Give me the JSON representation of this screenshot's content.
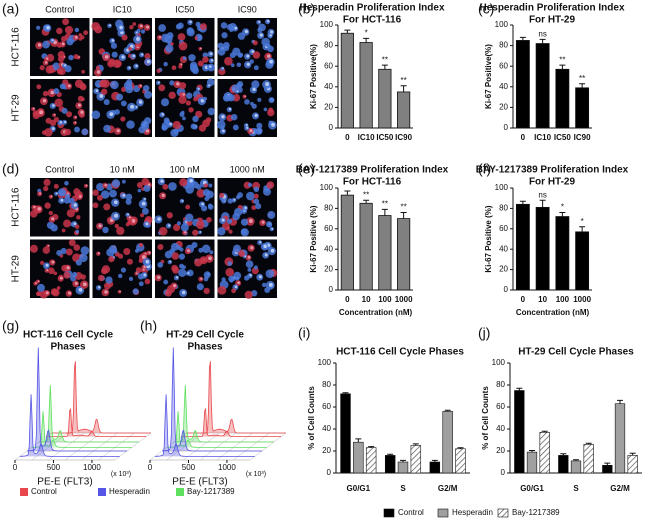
{
  "micrographs": [
    {
      "panel": "(a)",
      "columns": [
        "Control",
        "IC10",
        "IC50",
        "IC90"
      ],
      "rows": [
        "HCT-116",
        "HT-29"
      ]
    },
    {
      "panel": "(d)",
      "columns": [
        "Control",
        "10 nM",
        "100 nM",
        "1000 nM"
      ],
      "rows": [
        "HCT-116",
        "HT-29"
      ]
    }
  ],
  "flow_legend": [
    {
      "name": "Control",
      "color": "#e8474b"
    },
    {
      "name": "Hesperadin",
      "color": "#5555e6"
    },
    {
      "name": "Bay-1217389",
      "color": "#5fe05f"
    }
  ],
  "bar_legend": [
    {
      "name": "Control",
      "color": "#000000"
    },
    {
      "name": "Hesperadin",
      "color": "#a0a0a0"
    },
    {
      "name": "Bay-1217389",
      "color": "#ffffff",
      "hatch": true
    }
  ],
  "chart_data": [
    {
      "type": "bar",
      "panel": "(b)",
      "title": "Hesperadin Proliferation Index",
      "subtitle": "For HCT-116",
      "ylabel": "Ki-67 Positive(%)",
      "categories": [
        "0",
        "IC10",
        "IC50",
        "IC90"
      ],
      "values": [
        92,
        83,
        57,
        35
      ],
      "errors": [
        3,
        4,
        4,
        6
      ],
      "annotations": [
        null,
        "*",
        "**",
        "**"
      ],
      "color": "#808080",
      "ylim": [
        0,
        100
      ],
      "yticks": [
        0,
        20,
        40,
        60,
        80,
        100
      ]
    },
    {
      "type": "bar",
      "panel": "(c)",
      "title": "Hesperadin Proliferation Index",
      "subtitle": "For HT-29",
      "ylabel": "Ki-67 Positive(%)",
      "categories": [
        "0",
        "IC10",
        "IC50",
        "IC90"
      ],
      "values": [
        85,
        82,
        57,
        39
      ],
      "errors": [
        3,
        4,
        4,
        4
      ],
      "annotations": [
        null,
        "ns",
        "**",
        "**"
      ],
      "color": "#000000",
      "ylim": [
        0,
        100
      ],
      "yticks": [
        0,
        20,
        40,
        60,
        80,
        100
      ]
    },
    {
      "type": "bar",
      "panel": "(e)",
      "title": "BAY-1217389 Proliferation Index",
      "subtitle": "For HCT-116",
      "ylabel": "Ki-67 Positive (%)",
      "xlabel": "Concentration (nM)",
      "categories": [
        "0",
        "10",
        "100",
        "1000"
      ],
      "values": [
        93,
        85,
        73,
        70
      ],
      "errors": [
        4,
        3,
        6,
        6
      ],
      "annotations": [
        null,
        "**",
        "**",
        "**"
      ],
      "color": "#808080",
      "ylim": [
        0,
        100
      ],
      "yticks": [
        0,
        20,
        40,
        60,
        80,
        100
      ]
    },
    {
      "type": "bar",
      "panel": "(f)",
      "title": "BAY-1217389 Proliferation Index",
      "subtitle": "For HT-29",
      "ylabel": "Ki-67 Positive (%)",
      "xlabel": "Concentration (nM)",
      "categories": [
        "0",
        "10",
        "100",
        "1000"
      ],
      "values": [
        84,
        81,
        72,
        57
      ],
      "errors": [
        3,
        7,
        4,
        5
      ],
      "annotations": [
        null,
        "ns",
        "*",
        "*"
      ],
      "color": "#000000",
      "ylim": [
        0,
        100
      ],
      "yticks": [
        0,
        20,
        40,
        60,
        80,
        100
      ]
    },
    {
      "type": "flow",
      "panel": "(g)",
      "title": "HCT-116 Cell Cycle",
      "subtitle": "Phases",
      "xlabel": "PE-E (FLT3)",
      "xunit": "(x 10³)",
      "xlim": [
        0,
        1300
      ],
      "xticks": [
        0,
        500,
        1000
      ]
    },
    {
      "type": "flow",
      "panel": "(h)",
      "title": "HT-29 Cell Cycle",
      "subtitle": "Phases",
      "xlabel": "PE-E (FLT3)",
      "xunit": "(x 10³)",
      "xlim": [
        0,
        1300
      ],
      "xticks": [
        0,
        500,
        1000
      ]
    },
    {
      "type": "grouped_bar",
      "panel": "(i)",
      "title": "HCT-116 Cell Cycle Phases",
      "ylabel": "% of Cell Counts",
      "categories": [
        "G0/G1",
        "S",
        "G2/M"
      ],
      "series": [
        {
          "values": [
            72,
            16,
            10
          ],
          "errors": [
            1,
            1,
            1.5
          ]
        },
        {
          "values": [
            28,
            10,
            56
          ],
          "errors": [
            3,
            1.5,
            1
          ]
        },
        {
          "values": [
            23,
            25,
            22
          ],
          "errors": [
            1,
            1.5,
            1
          ]
        }
      ],
      "ylim": [
        0,
        100
      ],
      "yticks": [
        0,
        20,
        40,
        60,
        80,
        100
      ]
    },
    {
      "type": "grouped_bar",
      "panel": "(j)",
      "title": "HT-29 Cell Cycle Phases",
      "ylabel": "% of Cell Counts",
      "categories": [
        "G0/G1",
        "S",
        "G2/M"
      ],
      "series": [
        {
          "values": [
            75,
            16,
            7
          ],
          "errors": [
            2,
            1.5,
            2
          ]
        },
        {
          "values": [
            19,
            11,
            63
          ],
          "errors": [
            1.5,
            1,
            3
          ]
        },
        {
          "values": [
            37,
            26,
            16
          ],
          "errors": [
            1,
            1,
            2
          ]
        }
      ],
      "ylim": [
        0,
        100
      ],
      "yticks": [
        0,
        20,
        40,
        60,
        80,
        100
      ]
    }
  ]
}
